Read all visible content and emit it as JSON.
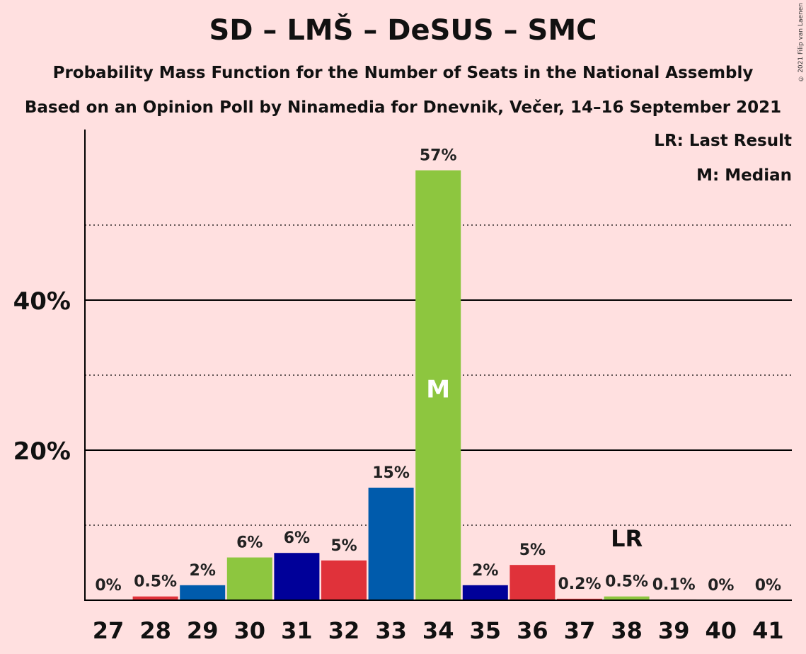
{
  "chart_data": {
    "type": "bar",
    "title": "SD – LMŠ – DeSUS – SMC",
    "subtitle_lines": [
      "Probability Mass Function for the Number of Seats in the National Assembly",
      "Based on an Opinion Poll by Ninamedia for Dnevnik, Večer, 14–16 September 2021"
    ],
    "categories": [
      "27",
      "28",
      "29",
      "30",
      "31",
      "32",
      "33",
      "34",
      "35",
      "36",
      "37",
      "38",
      "39",
      "40",
      "41"
    ],
    "values": [
      0,
      0.5,
      2,
      5.7,
      6.3,
      5.3,
      15,
      57.3,
      2,
      4.7,
      0.2,
      0.5,
      0.1,
      0,
      0
    ],
    "data_labels": [
      "0%",
      "0.5%",
      "2%",
      "6%",
      "6%",
      "5%",
      "15%",
      "57%",
      "2%",
      "5%",
      "0.2%",
      "0.5%",
      "0.1%",
      "0%",
      "0%"
    ],
    "bar_colors": [
      "#E0323A",
      "#E0323A",
      "#005BAC",
      "#8DC63F",
      "#000099",
      "#E0323A",
      "#005BAC",
      "#8DC63F",
      "#000099",
      "#E0323A",
      "#E0323A",
      "#8DC63F",
      "#E0323A",
      "#E0323A",
      "#E0323A"
    ],
    "ylim": [
      0,
      62
    ],
    "y_ticks": [
      {
        "value": 20,
        "label": "20%"
      },
      {
        "value": 40,
        "label": "40%"
      }
    ],
    "minor_gridlines": [
      10,
      30,
      50
    ],
    "median_index": 7,
    "median_marker": "M",
    "last_result_index": 11,
    "last_result_marker": "LR",
    "legend": {
      "lr": "LR: Last Result",
      "m": "M: Median",
      "placement": "top-right"
    },
    "grid": true
  },
  "copyright": "© 2021 Filip van Laenen"
}
